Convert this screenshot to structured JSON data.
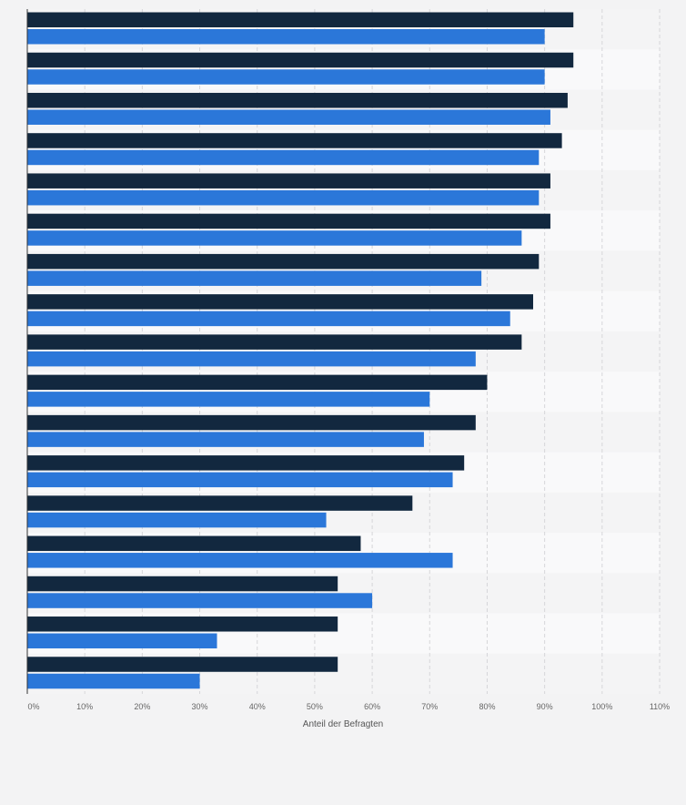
{
  "chart_data": {
    "type": "bar",
    "orientation": "horizontal",
    "title": "",
    "xlabel": "Anteil der Befragten",
    "ylabel": "",
    "xlim": [
      0,
      110
    ],
    "grid": true,
    "legend": "none",
    "tick_labels": [
      "0%",
      "10%",
      "20%",
      "30%",
      "40%",
      "50%",
      "60%",
      "70%",
      "80%",
      "90%",
      "100%",
      "110%"
    ],
    "categories": [
      "",
      "",
      "",
      "",
      "",
      "",
      "",
      "",
      "",
      "",
      "",
      "",
      "",
      "",
      "",
      "",
      ""
    ],
    "series": [
      {
        "color": "#12283f",
        "values": [
          95,
          95,
          94,
          93,
          91,
          91,
          89,
          88,
          86,
          80,
          78,
          76,
          67,
          58,
          54,
          54,
          54
        ]
      },
      {
        "color": "#2b77d9",
        "values": [
          90,
          90,
          91,
          89,
          89,
          86,
          79,
          84,
          78,
          70,
          69,
          74,
          52,
          74,
          60,
          33,
          30
        ]
      }
    ]
  }
}
